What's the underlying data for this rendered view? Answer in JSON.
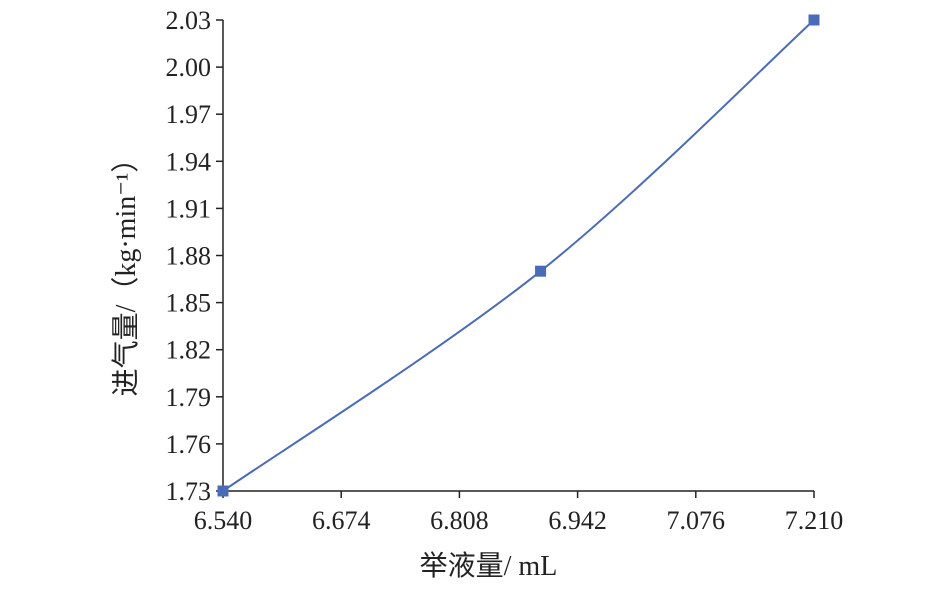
{
  "chart_data": {
    "type": "line",
    "xlabel": "举液量/ mL",
    "ylabel": "进气量/（kg·min⁻¹）",
    "x_ticks": [
      "6.540",
      "6.674",
      "6.808",
      "6.942",
      "7.076",
      "7.210"
    ],
    "y_ticks": [
      "1.73",
      "1.76",
      "1.79",
      "1.82",
      "1.85",
      "1.88",
      "1.91",
      "1.94",
      "1.97",
      "2.00",
      "2.03"
    ],
    "xlim": [
      6.54,
      7.21
    ],
    "ylim": [
      1.73,
      2.03
    ],
    "grid": false,
    "legend": "none",
    "smooth": true,
    "series": [
      {
        "x": [
          6.54,
          6.9,
          7.21
        ],
        "y": [
          1.73,
          1.87,
          2.03
        ],
        "color": "#4a6cb8",
        "marker": "square"
      }
    ]
  }
}
